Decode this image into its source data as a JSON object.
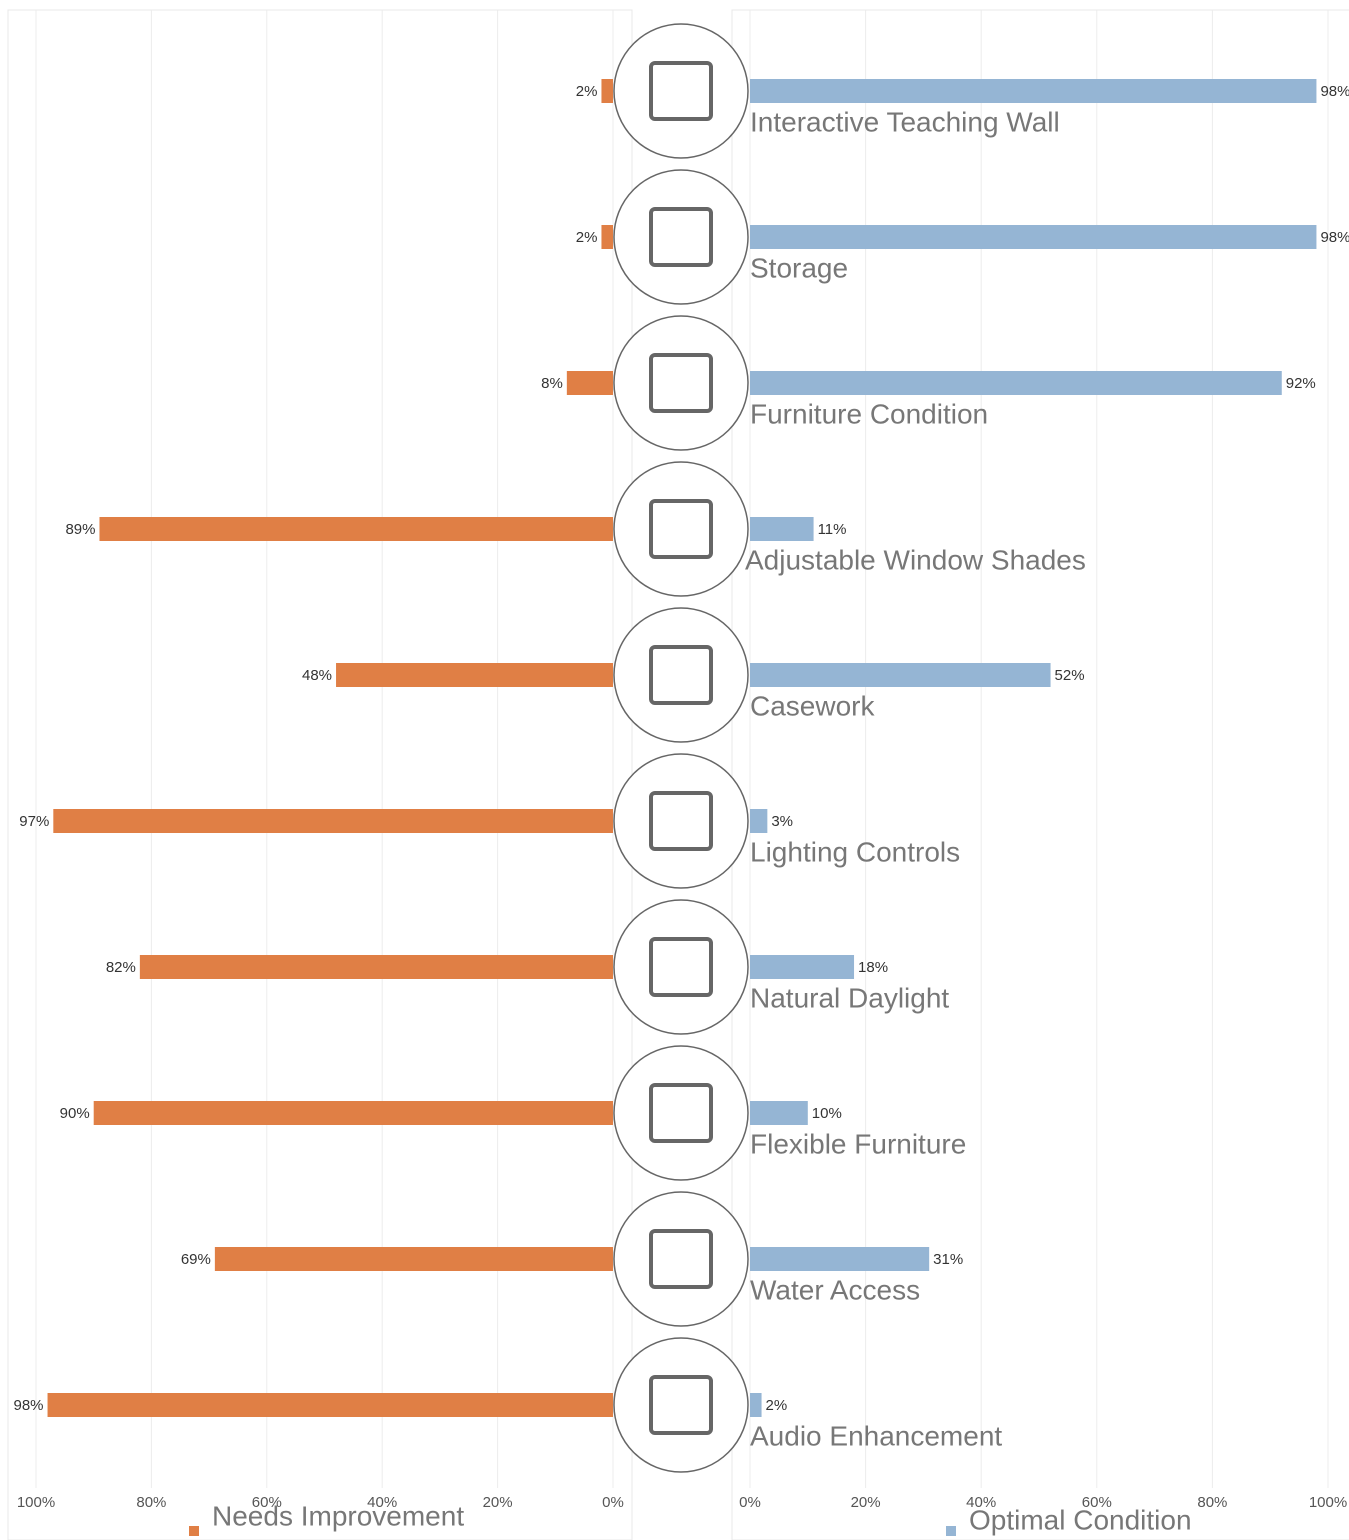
{
  "chart_data": {
    "type": "bar",
    "categories": [
      "Interactive Teaching Wall",
      "Storage",
      "Furniture Condition",
      "Adjustable Window Shades",
      "Casework",
      "Lighting Controls",
      "Natural Daylight",
      "Flexible Furniture",
      "Water Access",
      "Audio Enhancement"
    ],
    "series": [
      {
        "name": "Needs Improvement",
        "color": "#e07f45",
        "side": "left",
        "values": [
          2,
          2,
          8,
          89,
          48,
          97,
          82,
          90,
          69,
          98
        ],
        "value_labels": [
          "2%",
          "2%",
          "8%",
          "89%",
          "48%",
          "97%",
          "82%",
          "90%",
          "69%",
          "98%"
        ],
        "xlim": [
          0,
          100
        ],
        "xticks": [
          {
            "value": 100,
            "label": "100%"
          },
          {
            "value": 80,
            "label": "80%"
          },
          {
            "value": 60,
            "label": "60%"
          },
          {
            "value": 40,
            "label": "40%"
          },
          {
            "value": 20,
            "label": "20%"
          },
          {
            "value": 0,
            "label": "0%"
          }
        ]
      },
      {
        "name": "Optimal Condition",
        "color": "#95b5d4",
        "side": "right",
        "values": [
          98,
          98,
          92,
          11,
          52,
          3,
          18,
          10,
          31,
          2
        ],
        "value_labels": [
          "98%",
          "98%",
          "92%",
          "11%",
          "52%",
          "3%",
          "18%",
          "10%",
          "31%",
          "2%"
        ],
        "xlim": [
          0,
          100
        ],
        "xticks": [
          {
            "value": 0,
            "label": "0%"
          },
          {
            "value": 20,
            "label": "20%"
          },
          {
            "value": 40,
            "label": "40%"
          },
          {
            "value": 60,
            "label": "60%"
          },
          {
            "value": 80,
            "label": "80%"
          },
          {
            "value": 100,
            "label": "100%"
          }
        ]
      }
    ],
    "grid": true
  }
}
